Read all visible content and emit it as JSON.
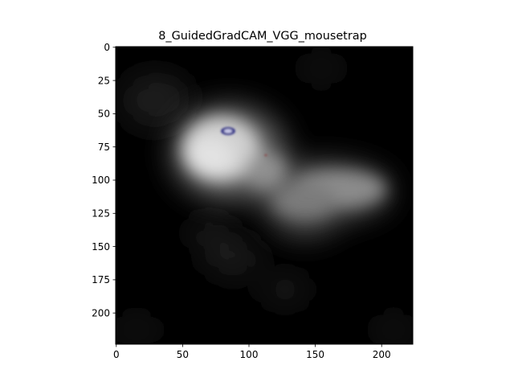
{
  "figure": {
    "title": "8_GuidedGradCAM_VGG_mousetrap",
    "x_ticks": [
      "0",
      "50",
      "100",
      "150",
      "200"
    ],
    "y_ticks": [
      "0",
      "25",
      "50",
      "75",
      "100",
      "125",
      "150",
      "175",
      "200"
    ],
    "background_color": "#ffffff",
    "heatmap_base_color": "#000000",
    "highlight_color": "#d8d8d8",
    "accent_color": "#2a2a7a"
  }
}
